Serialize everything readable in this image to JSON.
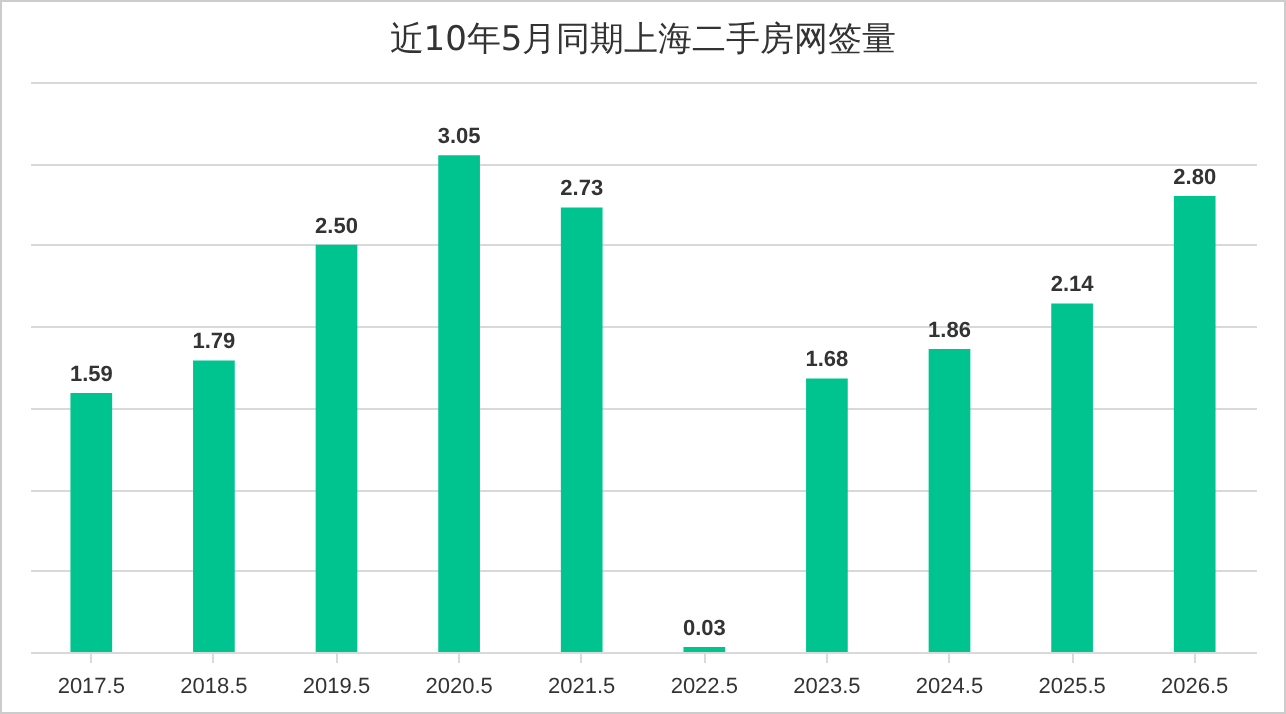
{
  "chart_data": {
    "type": "bar",
    "title": "近10年5月同期上海二手房网签量",
    "categories": [
      "2017.5",
      "2018.5",
      "2019.5",
      "2020.5",
      "2021.5",
      "2022.5",
      "2023.5",
      "2024.5",
      "2025.5",
      "2026.5"
    ],
    "values": [
      1.59,
      1.79,
      2.5,
      3.05,
      2.73,
      0.03,
      1.68,
      1.86,
      2.14,
      2.8
    ],
    "value_labels": [
      "1.59",
      "1.79",
      "2.50",
      "3.05",
      "2.73",
      "0.03",
      "1.68",
      "1.86",
      "2.14",
      "2.80"
    ],
    "color": "#00c48f",
    "ylim": [
      0,
      3.5
    ],
    "yticks": [
      {
        "value": 0,
        "label": null
      },
      {
        "value": 0.5,
        "label": null
      },
      {
        "value": 1,
        "label": null
      },
      {
        "value": 1.5,
        "label": null
      },
      {
        "value": 2,
        "label": null
      },
      {
        "value": 2.5,
        "label": null
      },
      {
        "value": 3,
        "label": null
      },
      {
        "value": 3.5,
        "label": null
      }
    ],
    "grid": "y",
    "tick_labels": "x"
  }
}
